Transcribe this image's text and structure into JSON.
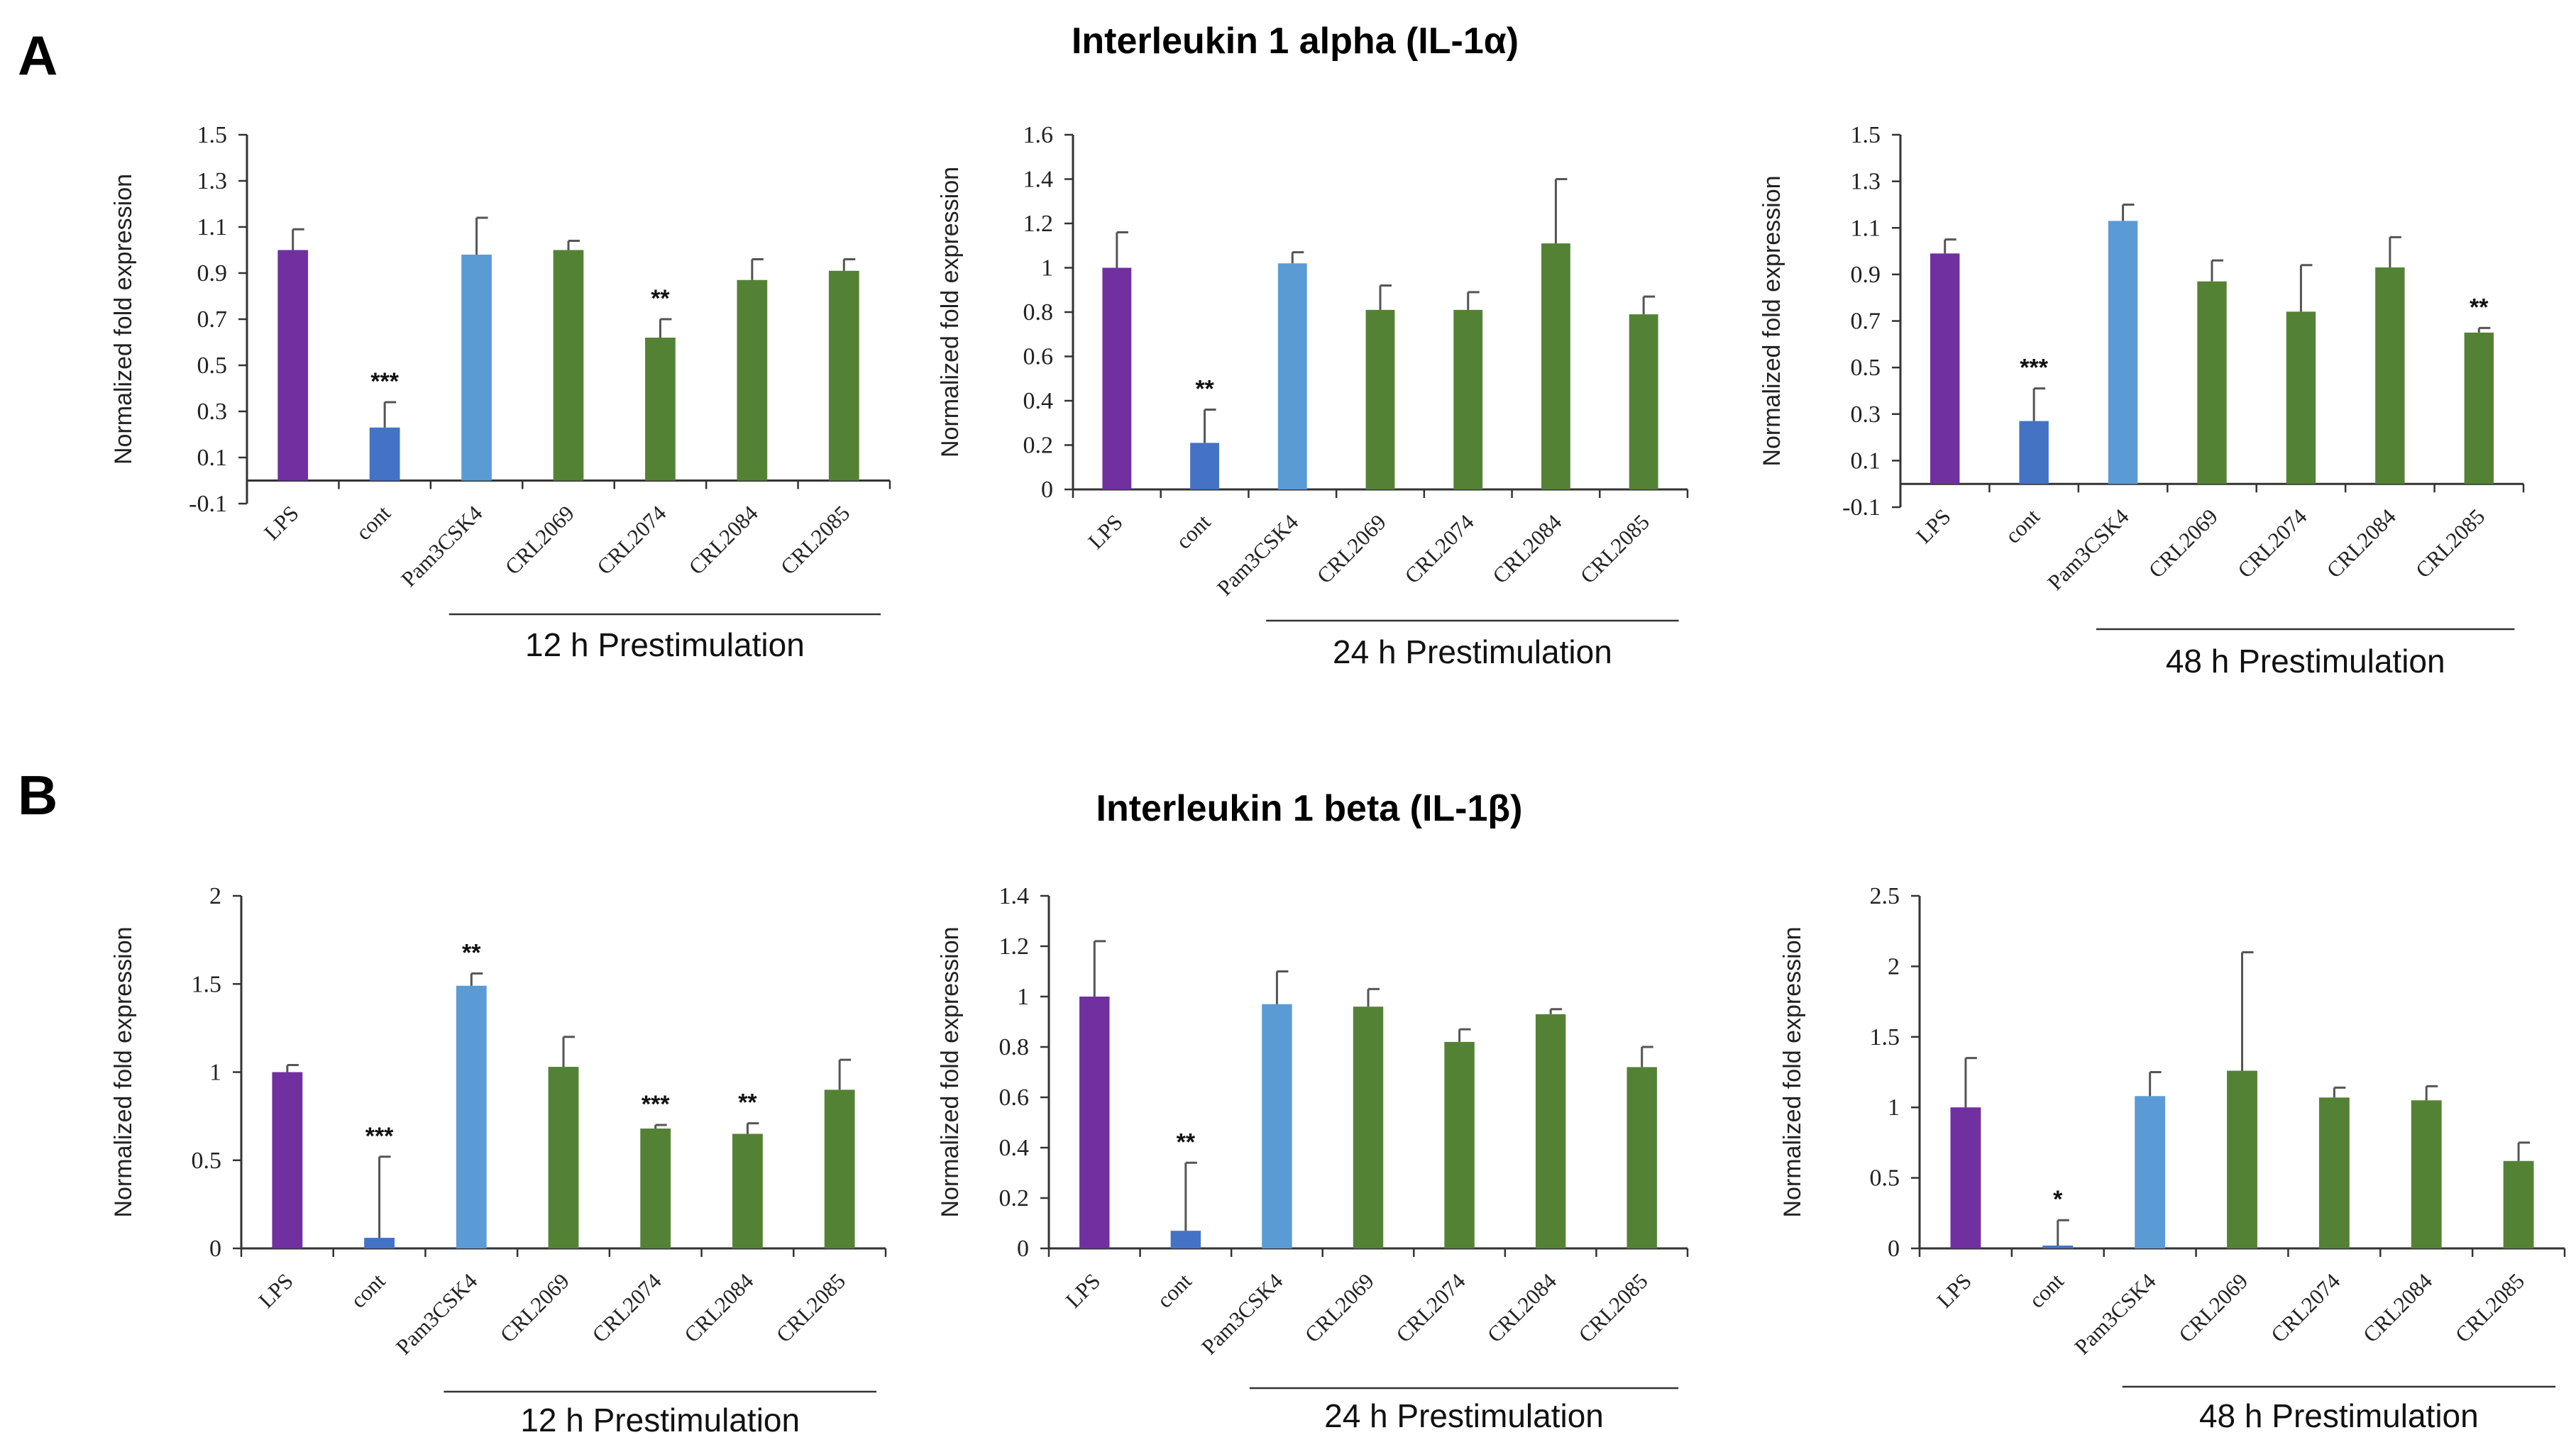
{
  "figure": {
    "row_titles": [
      "Interleukin 1 alpha (IL-1α)",
      "Interleukin 1 beta (IL-1β)"
    ],
    "panel_letters": [
      "A",
      "B"
    ],
    "colors": {
      "LPS": "#7030a0",
      "cont": "#4472c4",
      "Pam3CSK4": "#5b9bd5",
      "CRL": "#548235"
    }
  },
  "chart_data": [
    {
      "type": "bar",
      "row": 0,
      "col": 0,
      "title": "Interleukin 1 alpha (IL-1α)",
      "ylabel": "Normalized fold expression",
      "xlabel": "12 h Prestimulation",
      "categories": [
        "LPS",
        "cont",
        "Pam3CSK4",
        "CRL2069",
        "CRL2074",
        "CRL2084",
        "CRL2085"
      ],
      "values": [
        1.0,
        0.23,
        0.98,
        1.0,
        0.62,
        0.87,
        0.91
      ],
      "errors": [
        0.09,
        0.11,
        0.16,
        0.04,
        0.08,
        0.09,
        0.05
      ],
      "significance": [
        "",
        "***",
        "",
        "",
        "**",
        "",
        ""
      ],
      "ylim": [
        -0.1,
        1.5
      ],
      "yticks": [
        "1.5",
        "1.3",
        "1.1",
        "0.9",
        "0.7",
        "0.5",
        "0.3",
        "0.1",
        "-0.1"
      ]
    },
    {
      "type": "bar",
      "row": 0,
      "col": 1,
      "title": "Interleukin 1 alpha (IL-1α)",
      "ylabel": "Normalized fold expression",
      "xlabel": "24 h Prestimulation",
      "categories": [
        "LPS",
        "cont",
        "Pam3CSK4",
        "CRL2069",
        "CRL2074",
        "CRL2084",
        "CRL2085"
      ],
      "values": [
        1.0,
        0.21,
        1.02,
        0.81,
        0.81,
        1.11,
        0.79
      ],
      "errors": [
        0.16,
        0.15,
        0.05,
        0.11,
        0.08,
        0.29,
        0.08
      ],
      "significance": [
        "",
        "**",
        "",
        "",
        "",
        "",
        ""
      ],
      "ylim": [
        0,
        1.6
      ],
      "yticks": [
        "1.6",
        "1.4",
        "1.2",
        "1",
        "0.8",
        "0.6",
        "0.4",
        "0.2",
        "0"
      ]
    },
    {
      "type": "bar",
      "row": 0,
      "col": 2,
      "title": "Interleukin 1 alpha (IL-1α)",
      "ylabel": "Normalized fold expression",
      "xlabel": "48 h Prestimulation",
      "categories": [
        "LPS",
        "cont",
        "Pam3CSK4",
        "CRL2069",
        "CRL2074",
        "CRL2084",
        "CRL2085"
      ],
      "values": [
        0.99,
        0.27,
        1.13,
        0.87,
        0.74,
        0.93,
        0.65
      ],
      "errors": [
        0.06,
        0.14,
        0.07,
        0.09,
        0.2,
        0.13,
        0.02
      ],
      "significance": [
        "",
        "***",
        "",
        "",
        "",
        "",
        "**"
      ],
      "ylim": [
        -0.1,
        1.5
      ],
      "yticks": [
        "1.5",
        "1.3",
        "1.1",
        "0.9",
        "0.7",
        "0.5",
        "0.3",
        "0.1",
        "-0.1"
      ]
    },
    {
      "type": "bar",
      "row": 1,
      "col": 0,
      "title": "Interleukin 1 beta (IL-1β)",
      "ylabel": "Normalized fold expression",
      "xlabel": "12 h Prestimulation",
      "categories": [
        "LPS",
        "cont",
        "Pam3CSK4",
        "CRL2069",
        "CRL2074",
        "CRL2084",
        "CRL2085"
      ],
      "values": [
        1.0,
        0.06,
        1.49,
        1.03,
        0.68,
        0.65,
        0.9
      ],
      "errors": [
        0.04,
        0.46,
        0.07,
        0.17,
        0.02,
        0.06,
        0.17
      ],
      "significance": [
        "",
        "***",
        "**",
        "",
        "***",
        "**",
        ""
      ],
      "ylim": [
        0,
        2
      ],
      "yticks": [
        "2",
        "1.5",
        "1",
        "0.5",
        "0"
      ]
    },
    {
      "type": "bar",
      "row": 1,
      "col": 1,
      "title": "Interleukin 1 beta (IL-1β)",
      "ylabel": "Normalized fold expression",
      "xlabel": "24 h Prestimulation",
      "categories": [
        "LPS",
        "cont",
        "Pam3CSK4",
        "CRL2069",
        "CRL2074",
        "CRL2084",
        "CRL2085"
      ],
      "values": [
        1.0,
        0.07,
        0.97,
        0.96,
        0.82,
        0.93,
        0.72
      ],
      "errors": [
        0.22,
        0.27,
        0.13,
        0.07,
        0.05,
        0.02,
        0.08
      ],
      "significance": [
        "",
        "**",
        "",
        "",
        "",
        "",
        ""
      ],
      "ylim": [
        0,
        1.4
      ],
      "yticks": [
        "1.4",
        "1.2",
        "1",
        "0.8",
        "0.6",
        "0.4",
        "0.2",
        "0"
      ]
    },
    {
      "type": "bar",
      "row": 1,
      "col": 2,
      "title": "Interleukin 1 beta (IL-1β)",
      "ylabel": "Normalized fold expression",
      "xlabel": "48 h Prestimulation",
      "categories": [
        "LPS",
        "cont",
        "Pam3CSK4",
        "CRL2069",
        "CRL2074",
        "CRL2084",
        "CRL2085"
      ],
      "values": [
        1.0,
        0.02,
        1.08,
        1.26,
        1.07,
        1.05,
        0.62
      ],
      "errors": [
        0.35,
        0.18,
        0.17,
        0.84,
        0.07,
        0.1,
        0.13
      ],
      "significance": [
        "",
        "*",
        "",
        "",
        "",
        "",
        ""
      ],
      "ylim": [
        0,
        2.5
      ],
      "yticks": [
        "2.5",
        "2",
        "1.5",
        "1",
        "0.5",
        "0"
      ]
    }
  ]
}
